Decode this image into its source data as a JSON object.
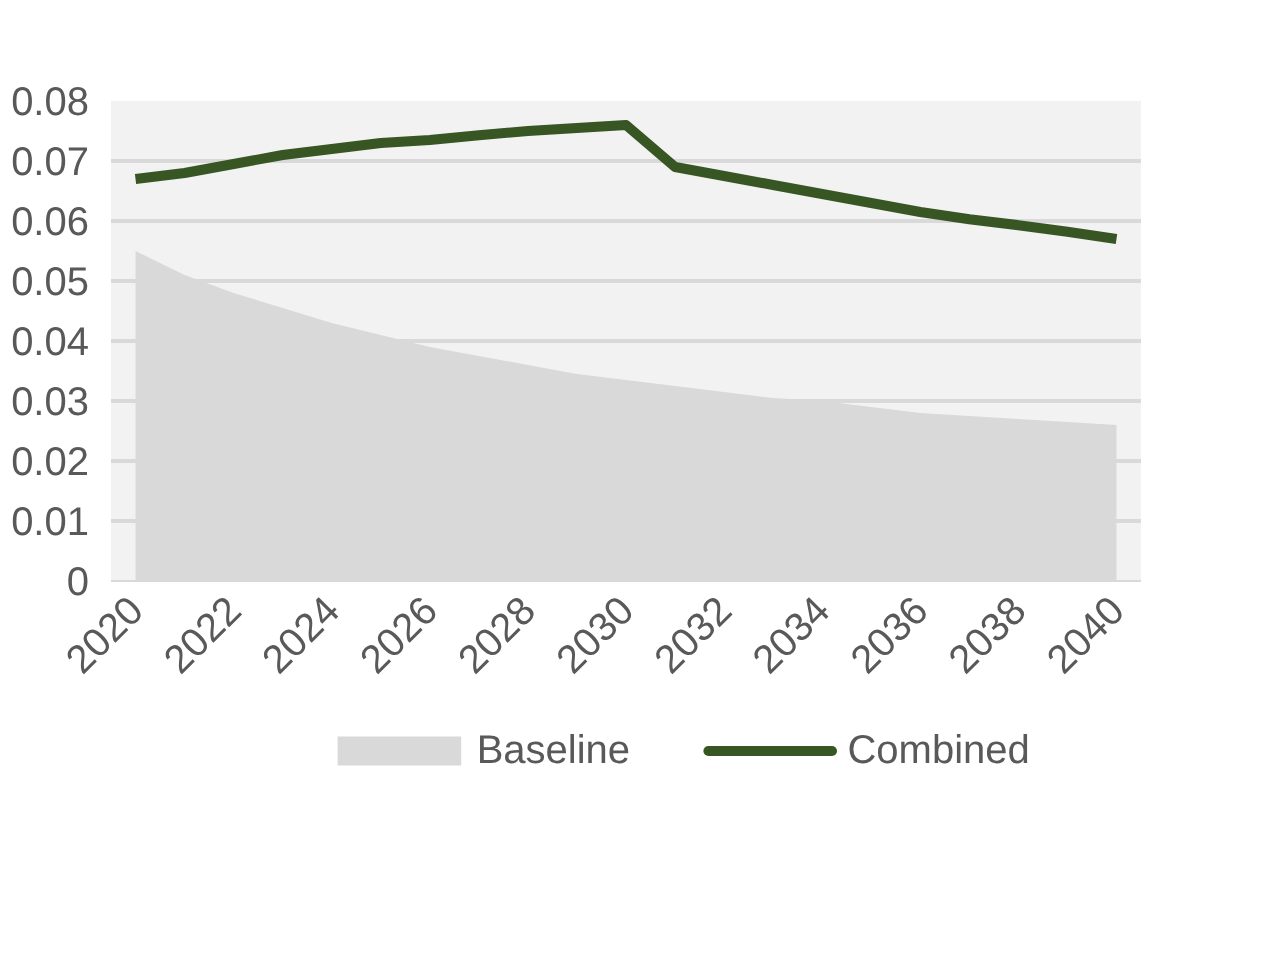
{
  "chart_data": {
    "type": "line",
    "x": [
      2020,
      2021,
      2022,
      2023,
      2024,
      2025,
      2026,
      2027,
      2028,
      2029,
      2030,
      2031,
      2032,
      2033,
      2034,
      2035,
      2036,
      2037,
      2038,
      2039,
      2040
    ],
    "series": [
      {
        "name": "Baseline",
        "type": "area",
        "color": "#d9d9d9",
        "values": [
          0.055,
          0.051,
          0.048,
          0.0455,
          0.043,
          0.041,
          0.039,
          0.0375,
          0.036,
          0.0345,
          0.0335,
          0.0325,
          0.0315,
          0.0305,
          0.03,
          0.029,
          0.028,
          0.0275,
          0.027,
          0.0265,
          0.026
        ]
      },
      {
        "name": "Combined",
        "color": "#375623",
        "values": [
          0.067,
          0.068,
          0.0695,
          0.071,
          0.072,
          0.073,
          0.0735,
          0.0743,
          0.075,
          0.0755,
          0.076,
          0.069,
          0.0675,
          0.066,
          0.0645,
          0.063,
          0.0615,
          0.0603,
          0.0593,
          0.0582,
          0.057
        ]
      }
    ],
    "xlim": [
      2019.5,
      2040.5
    ],
    "xticks": [
      2020,
      2022,
      2024,
      2026,
      2028,
      2030,
      2032,
      2034,
      2036,
      2038,
      2040
    ],
    "ylim": [
      0,
      0.08
    ],
    "yticks": [
      {
        "value": 0,
        "label": "0"
      },
      {
        "value": 0.01,
        "label": "0.01"
      },
      {
        "value": 0.02,
        "label": "0.02"
      },
      {
        "value": 0.03,
        "label": "0.03"
      },
      {
        "value": 0.04,
        "label": "0.04"
      },
      {
        "value": 0.05,
        "label": "0.05"
      },
      {
        "value": 0.06,
        "label": "0.06"
      },
      {
        "value": 0.07,
        "label": "0.07"
      },
      {
        "value": 0.08,
        "label": "0.08"
      }
    ],
    "grid": "y",
    "legend": "bottom",
    "marker": "none",
    "line_style": "solid"
  }
}
